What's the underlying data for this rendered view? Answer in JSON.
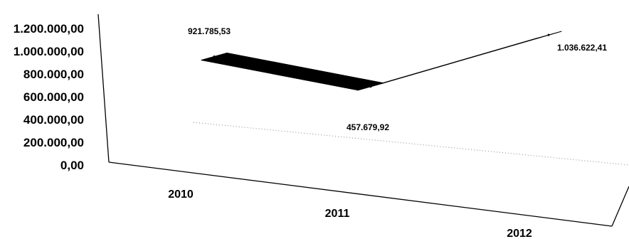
{
  "chart_data": {
    "type": "line",
    "style": "3d-ribbon",
    "categories": [
      "2010",
      "2011",
      "2012"
    ],
    "series": [
      {
        "values": [
          921785.53,
          457679.92,
          1036622.41
        ],
        "labels": [
          "921.785,53",
          "457.679,92",
          "1.036.622,41"
        ]
      }
    ],
    "y_ticks": [
      "0,00",
      "200.000,00",
      "400.000,00",
      "600.000,00",
      "800.000,00",
      "1.000.000,00",
      "1.200.000,00"
    ],
    "ylim": [
      0,
      1200000
    ],
    "grid": false,
    "legend": "none",
    "colors": {
      "series": "#000000",
      "axis": "#000000",
      "background": "#ffffff",
      "floor_dots": "#9a9a9a"
    }
  }
}
